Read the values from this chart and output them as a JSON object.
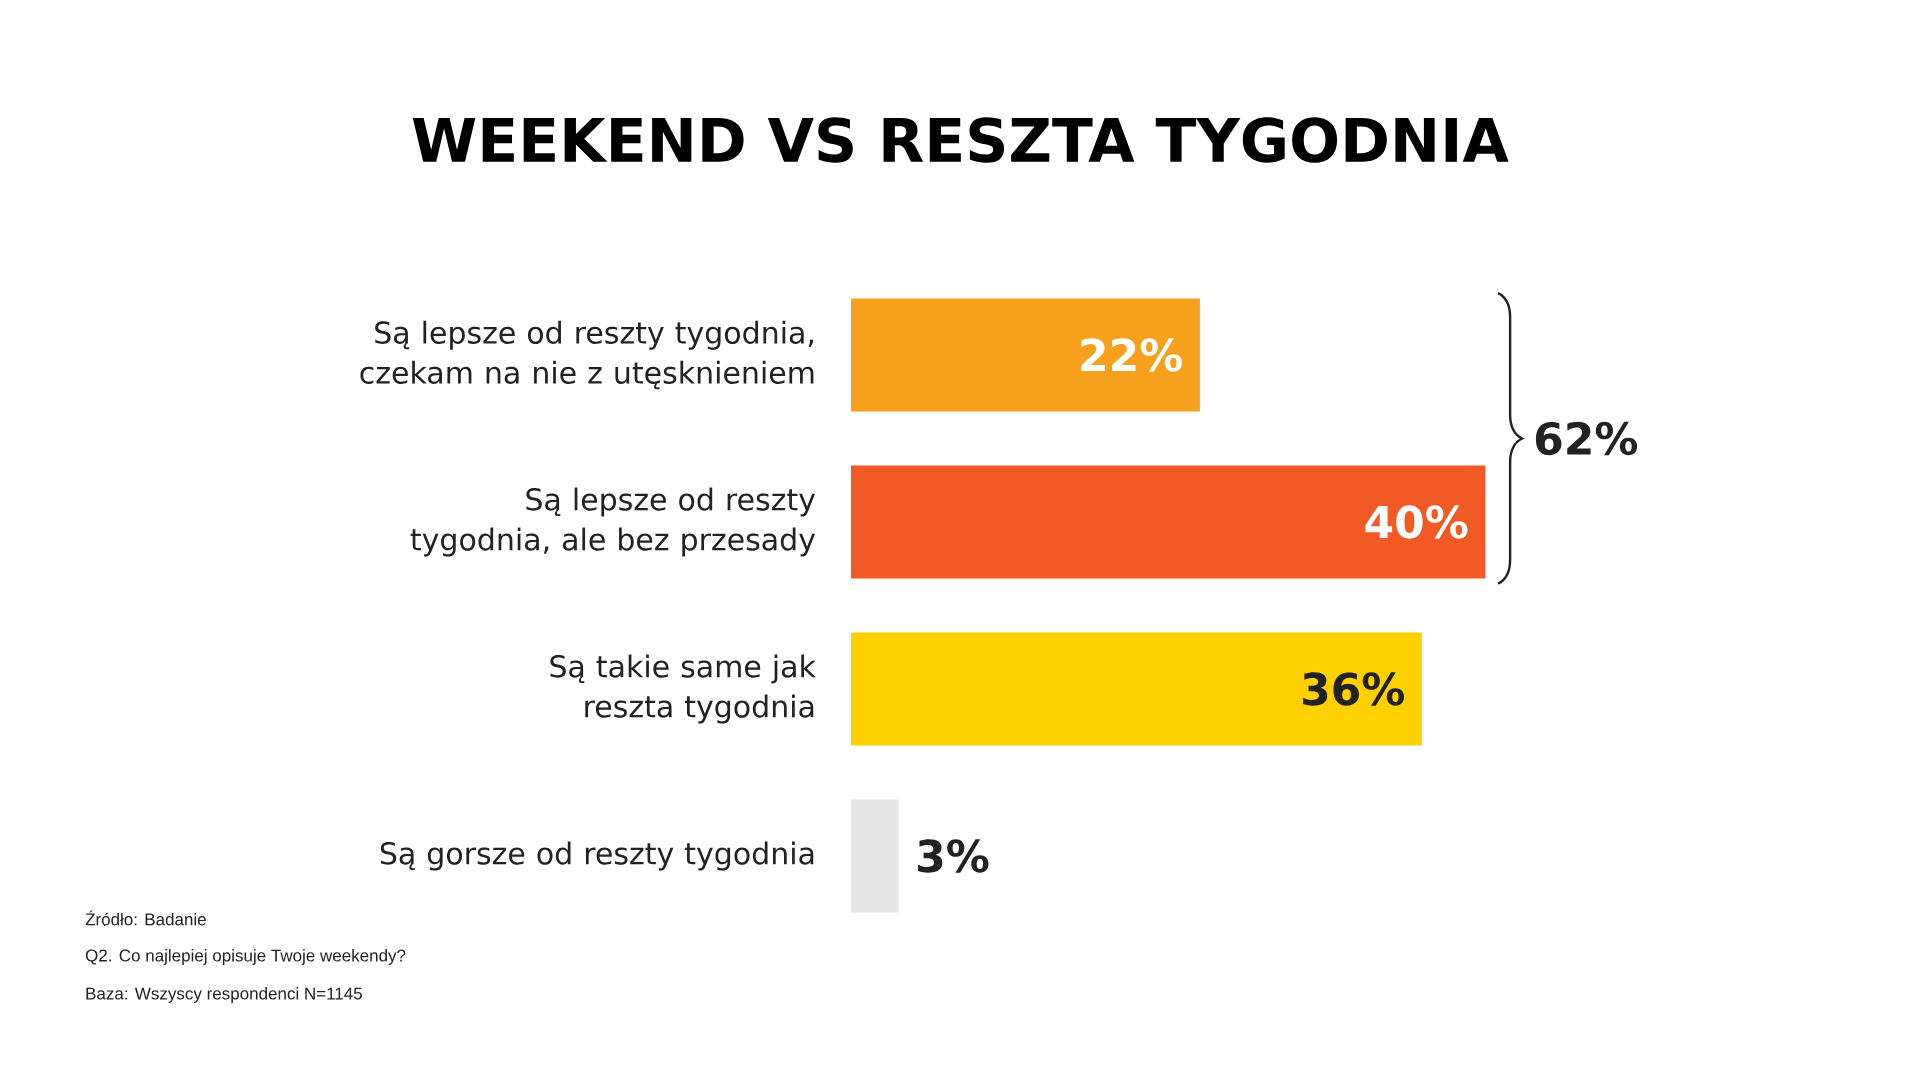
{
  "chart_data": {
    "type": "bar",
    "orientation": "horizontal",
    "title": "WEEKEND VS RESZTA TYGODNIA",
    "categories": [
      "Są lepsze od reszty tygodnia, czekam na nie z utęsknieniem",
      "Są lepsze od reszty tygodnia, ale bez przesady",
      "Są takie same jak reszta tygodnia",
      "Są gorsze od reszty tygodnia"
    ],
    "values": [
      22,
      40,
      36,
      3
    ],
    "value_labels": [
      "22%",
      "40%",
      "36%",
      "3%"
    ],
    "colors": [
      "#f7a01d",
      "#f15a24",
      "#ffd100",
      "#e6e6e6"
    ],
    "annotations": [
      "62%",
      "Źródło: Badanie",
      "Q2. Co najlepiej opisuje Twoje weekendy?",
      "Baza: Wszyscy respondenci N=1145"
    ]
  }
}
